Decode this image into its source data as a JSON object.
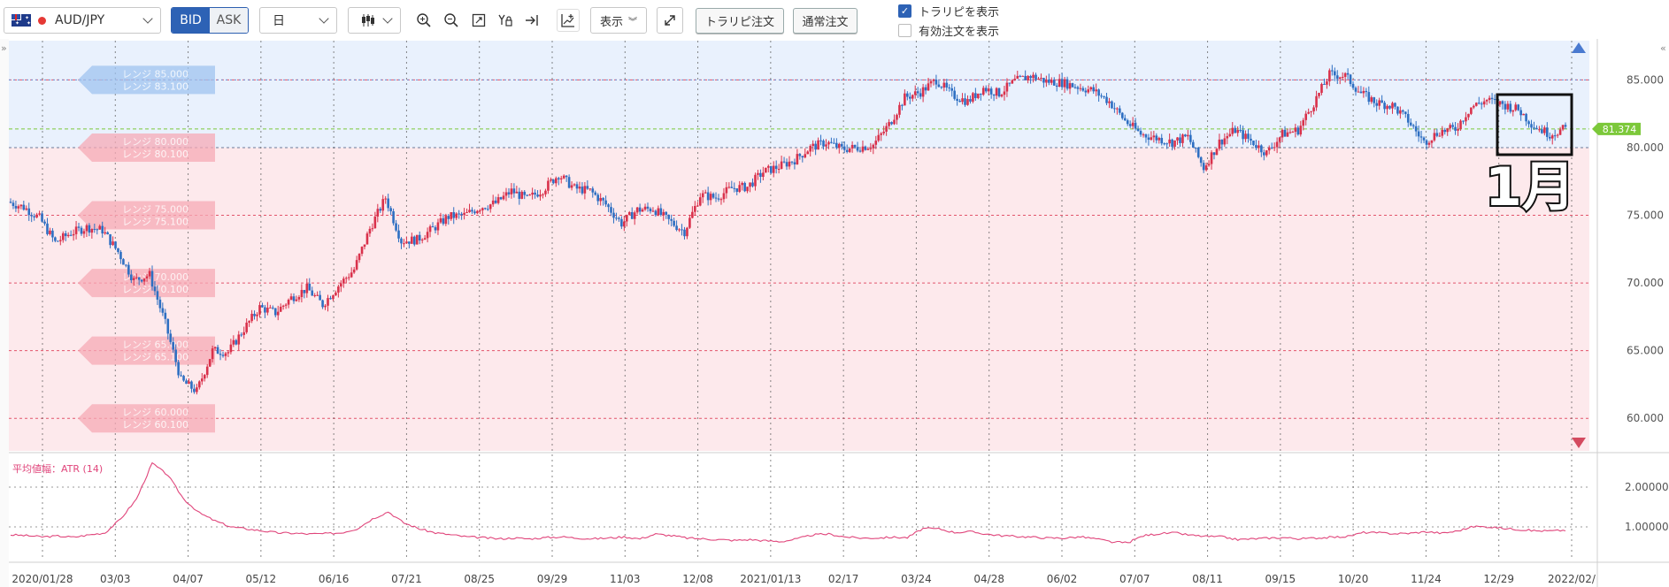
{
  "toolbar": {
    "pair": "AUD/JPY",
    "bid_label": "BID",
    "ask_label": "ASK",
    "timeframe": "日",
    "show_label": "表示",
    "trarepi_order_label": "トラリピ注文",
    "normal_order_label": "通常注文",
    "show_trarepi_label": "トラリピを表示",
    "show_trarepi_checked": true,
    "show_active_orders_label": "有効注文を表示",
    "show_active_orders_checked": false
  },
  "chart_data": [
    {
      "type": "candlestick",
      "title": "",
      "x_ticks": [
        "2020/01/28",
        "03/03",
        "04/07",
        "05/12",
        "06/16",
        "07/21",
        "08/25",
        "09/29",
        "11/03",
        "12/08",
        "2021/01/13",
        "02/17",
        "03/24",
        "04/28",
        "06/02",
        "07/07",
        "08/11",
        "09/15",
        "10/20",
        "11/24",
        "12/29",
        "2022/02/"
      ],
      "y_ticks": [
        "85.000",
        "80.000",
        "75.000",
        "70.000",
        "65.000",
        "60.000"
      ],
      "ylim": [
        57.6,
        87.9
      ],
      "current_price": "81.374",
      "series_approx_close": [
        76.0,
        75.6,
        74.8,
        73.0,
        73.7,
        74.1,
        73.9,
        72.3,
        70.2,
        70.6,
        67.0,
        62.8,
        62.0,
        65.0,
        64.9,
        66.6,
        68.2,
        67.8,
        68.9,
        69.6,
        68.4,
        69.8,
        71.0,
        74.0,
        76.3,
        73.1,
        73.2,
        74.0,
        74.9,
        75.0,
        75.6,
        75.9,
        76.8,
        76.2,
        76.9,
        78.0,
        77.0,
        76.8,
        75.8,
        74.4,
        75.4,
        75.5,
        74.6,
        73.8,
        76.5,
        76.3,
        77.0,
        77.1,
        78.2,
        78.6,
        79.1,
        80.0,
        80.4,
        79.9,
        80.0,
        80.2,
        81.7,
        83.7,
        84.1,
        85.0,
        83.9,
        83.4,
        84.4,
        84.0,
        84.9,
        85.3,
        84.9,
        84.8,
        84.5,
        84.2,
        83.4,
        82.0,
        81.0,
        80.7,
        80.4,
        80.8,
        78.5,
        80.4,
        81.3,
        80.5,
        79.6,
        81.0,
        81.3,
        83.3,
        85.4,
        85.3,
        84.0,
        83.3,
        83.1,
        82.0,
        80.4,
        81.2,
        81.4,
        83.0,
        83.5,
        83.2,
        82.8,
        81.6,
        81.0,
        81.4
      ],
      "annotations": [
        {
          "label": "レンジ 85.000",
          "label2": "レンジ 83.100"
        },
        {
          "label": "レンジ 80.000",
          "label2": "レンジ 80.100"
        },
        {
          "label": "レンジ 75.000",
          "label2": "レンジ 75.100"
        },
        {
          "label": "レンジ 70.000",
          "label2": "レンジ 70.100"
        },
        {
          "label": "レンジ 65.000",
          "label2": "レンジ 65.100"
        },
        {
          "label": "レンジ 60.000",
          "label2": "レンジ 60.100"
        }
      ],
      "marker_text": "1月"
    },
    {
      "type": "line",
      "title": "平均値幅：ATR (14)",
      "y_ticks": [
        "2.00000",
        "1.00000"
      ],
      "ylim": [
        0.2,
        2.8
      ],
      "values": [
        0.8,
        0.78,
        0.75,
        0.77,
        0.74,
        0.8,
        0.85,
        1.2,
        1.7,
        2.6,
        2.3,
        1.7,
        1.35,
        1.15,
        1.0,
        0.95,
        0.9,
        0.85,
        0.84,
        0.82,
        0.83,
        0.85,
        0.95,
        1.2,
        1.38,
        1.1,
        0.95,
        0.85,
        0.8,
        0.75,
        0.73,
        0.7,
        0.72,
        0.7,
        0.73,
        0.75,
        0.72,
        0.7,
        0.72,
        0.75,
        0.7,
        0.82,
        0.78,
        0.72,
        0.7,
        0.68,
        0.66,
        0.68,
        0.65,
        0.63,
        0.7,
        0.8,
        0.82,
        0.75,
        0.72,
        0.72,
        0.74,
        0.73,
        0.96,
        0.95,
        0.86,
        0.88,
        0.82,
        0.78,
        0.76,
        0.74,
        0.72,
        0.72,
        0.75,
        0.7,
        0.62,
        0.6,
        0.78,
        0.83,
        0.85,
        0.79,
        0.76,
        0.75,
        0.68,
        0.7,
        0.72,
        0.73,
        0.7,
        0.72,
        0.74,
        0.76,
        0.86,
        0.85,
        0.83,
        0.84,
        0.88,
        0.84,
        0.9,
        1.01,
        1.0,
        0.96,
        0.93,
        0.9,
        0.9,
        0.92
      ]
    }
  ],
  "colors": {
    "up": "#d9314b",
    "down": "#2e6fc2",
    "atr": "#e0457b",
    "upper_zone": "#e9f1fd",
    "lower_zone": "#fde9ec",
    "price_tag": "#7cc83a"
  }
}
